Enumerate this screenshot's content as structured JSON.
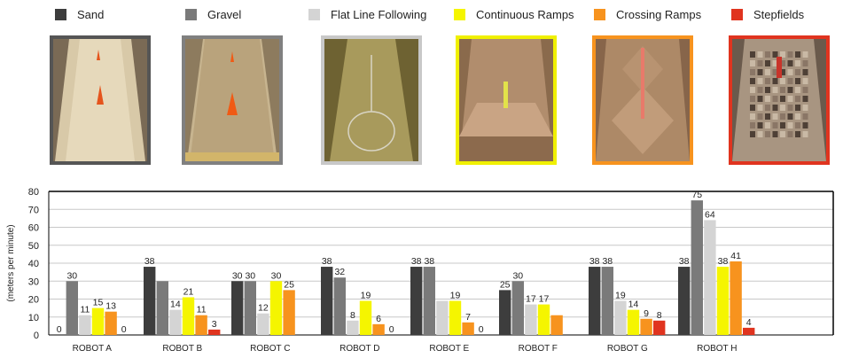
{
  "colors": {
    "sand": "#3d3d3d",
    "gravel": "#7a7a7a",
    "flat": "#d4d4d4",
    "continuous": "#f5f500",
    "crossing": "#f7931e",
    "stepfields": "#e0341f"
  },
  "photos": [
    {
      "name": "sand-photo",
      "border": "#555555"
    },
    {
      "name": "gravel-photo",
      "border": "#808080"
    },
    {
      "name": "flat-line-photo",
      "border": "#c8c8c8"
    },
    {
      "name": "continuous-ramps-photo",
      "border": "#f0f000"
    },
    {
      "name": "crossing-ramps-photo",
      "border": "#f7931e"
    },
    {
      "name": "stepfields-photo",
      "border": "#e0341f"
    }
  ],
  "chart_data": {
    "type": "bar",
    "ylabel": "(meters per minute)",
    "ylim": [
      0,
      80
    ],
    "yticks": [
      0,
      10,
      20,
      30,
      40,
      50,
      60,
      70,
      80
    ],
    "grid": true,
    "legend_position": "top",
    "categories": [
      "ROBOT A",
      "ROBOT B",
      "ROBOT C",
      "ROBOT D",
      "ROBOT E",
      "ROBOT F",
      "ROBOT G",
      "ROBOT H"
    ],
    "series": [
      {
        "name": "Sand",
        "color": "#3d3d3d",
        "values": [
          0,
          38,
          30,
          38,
          38,
          25,
          38,
          38
        ],
        "labels": [
          "0",
          "38",
          "30",
          "38",
          "38",
          "25",
          "38",
          "38"
        ]
      },
      {
        "name": "Gravel",
        "color": "#7a7a7a",
        "values": [
          30,
          30,
          30,
          32,
          38,
          30,
          38,
          75
        ],
        "labels": [
          "30",
          "",
          "30",
          "32",
          "38",
          "30",
          "38",
          "75"
        ]
      },
      {
        "name": "Flat Line Following",
        "color": "#d4d4d4",
        "values": [
          11,
          14,
          12,
          8,
          19,
          17,
          19,
          64
        ],
        "labels": [
          "11",
          "14",
          "12",
          "8",
          "",
          "17",
          "19",
          "64"
        ]
      },
      {
        "name": "Continuous Ramps",
        "color": "#f5f500",
        "values": [
          15,
          21,
          30,
          19,
          19,
          17,
          14,
          38
        ],
        "labels": [
          "15",
          "21",
          "30",
          "19",
          "19",
          "17",
          "14",
          "38"
        ]
      },
      {
        "name": "Crossing Ramps",
        "color": "#f7931e",
        "values": [
          13,
          11,
          25,
          6,
          7,
          11,
          9,
          41
        ],
        "labels": [
          "13",
          "11",
          "25",
          "6",
          "7",
          "",
          "9",
          "41"
        ]
      },
      {
        "name": "Stepfields",
        "color": "#e0341f",
        "values": [
          0,
          3,
          0,
          0,
          0,
          0,
          8,
          4
        ],
        "labels": [
          "0",
          "3",
          "",
          "0",
          "0",
          "",
          "8",
          "4"
        ]
      }
    ]
  }
}
